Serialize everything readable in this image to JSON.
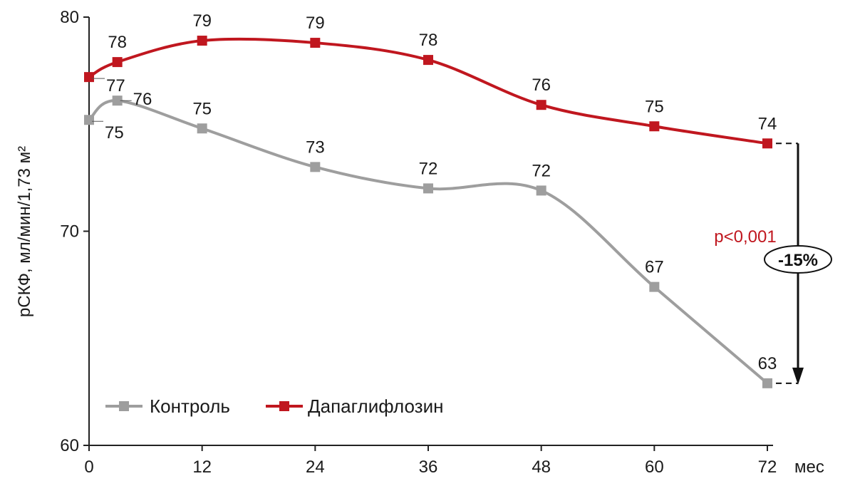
{
  "chart_data": {
    "type": "line",
    "xlabel": "мес",
    "ylabel": "рСКФ, мл/мин/1,73 м²",
    "xlim": [
      0,
      72
    ],
    "ylim": [
      60,
      80
    ],
    "x_ticks": [
      "0",
      "12",
      "24",
      "36",
      "48",
      "60",
      "72"
    ],
    "y_ticks": [
      "60",
      "70",
      "80"
    ],
    "grid": false,
    "legend_position": "bottom-left",
    "series": [
      {
        "name": "Контроль",
        "color": "#9e9e9e",
        "x": [
          0,
          3,
          12,
          24,
          36,
          48,
          60,
          72
        ],
        "y": [
          75.2,
          76.1,
          74.8,
          73.0,
          72.0,
          71.9,
          67.4,
          62.9
        ],
        "labels": [
          "75",
          "76",
          "75",
          "73",
          "72",
          "72",
          "67",
          "63"
        ]
      },
      {
        "name": "Дапаглифлозин",
        "color": "#c0171f",
        "x": [
          0,
          3,
          12,
          24,
          36,
          48,
          60,
          72
        ],
        "y": [
          77.2,
          77.9,
          78.9,
          78.8,
          78.0,
          75.9,
          74.9,
          74.1
        ],
        "labels": [
          "77",
          "78",
          "79",
          "79",
          "78",
          "76",
          "75",
          "74"
        ]
      }
    ],
    "annotations": {
      "p_value": "p<0,001",
      "p_value_color": "#c0171f",
      "difference": "-15%"
    }
  }
}
